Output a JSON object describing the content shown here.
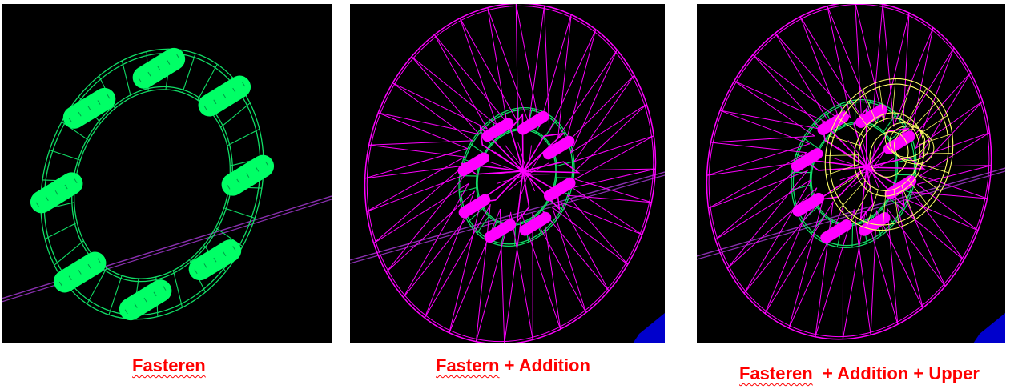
{
  "colors": {
    "background": "#000000",
    "fastener": "#00ff66",
    "fastener_wire": "#11dd66",
    "addition": "#ff00ff",
    "upper": "#ffff66",
    "beam": "#8a2fb0",
    "caption": "#ff0000",
    "corner": "#0000cc"
  },
  "panels": [
    {
      "caption": {
        "word": "Fasteren",
        "suffix": ""
      },
      "fastener_count": 8,
      "layers": [
        "fastener"
      ]
    },
    {
      "caption": {
        "word": "Fastern",
        "suffix": " + Addition"
      },
      "fastener_count": 8,
      "layers": [
        "fastener",
        "addition"
      ]
    },
    {
      "caption": {
        "word": "Fasteren",
        "suffix": "  + Addition + Upper"
      },
      "fastener_count": 8,
      "layers": [
        "fastener",
        "addition",
        "upper"
      ]
    }
  ]
}
